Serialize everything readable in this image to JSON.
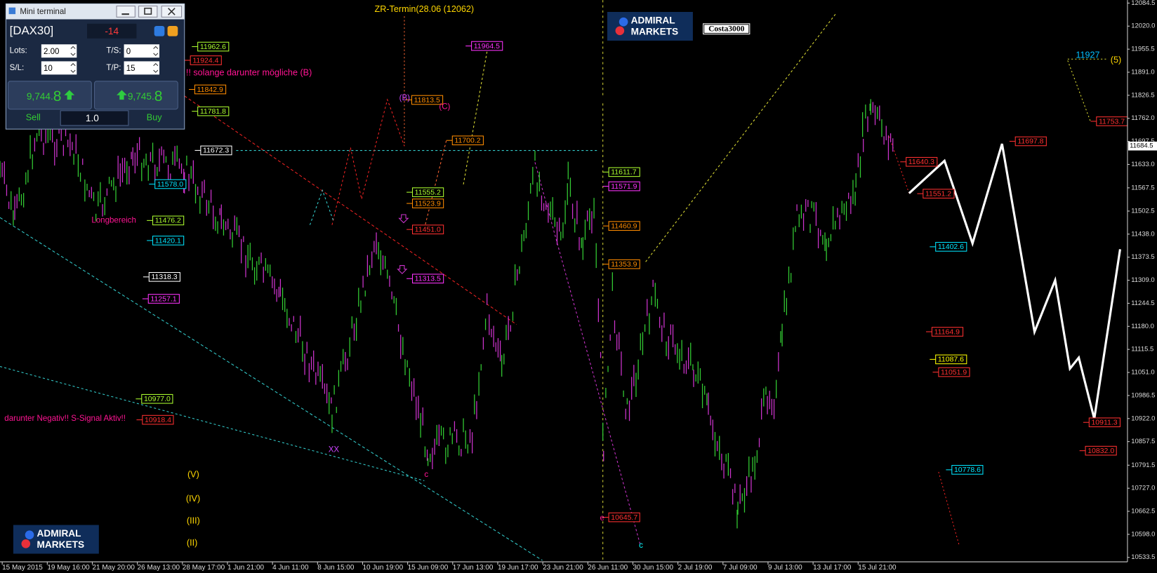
{
  "terminal": {
    "title": "Mini terminal",
    "symbol": "[DAX30]",
    "spread": "-14",
    "lots_label": "Lots:",
    "lots": "2.00",
    "ts_label": "T/S:",
    "ts": "0",
    "sl_label": "S/L:",
    "sl": "10",
    "tp_label": "T/P:",
    "tp": "15",
    "sell_price_main": "9,744.",
    "sell_price_last": "8",
    "buy_price_main": "9,745.",
    "buy_price_last": "8",
    "sell": "Sell",
    "volume": "1.0",
    "buy": "Buy"
  },
  "logo_top": [
    "ADMIRAL",
    "MARKETS"
  ],
  "logo_bottom": [
    "ADMIRAL",
    "MARKETS"
  ],
  "user_badge": "Costa3000",
  "price_axis": {
    "range": [
      10533.5,
      12084.5
    ],
    "ticks": [
      {
        "value": 12084.5,
        "label": "12084.5"
      },
      {
        "value": 12020.0,
        "label": "12020.0"
      },
      {
        "value": 11955.5,
        "label": "11955.5"
      },
      {
        "value": 11891.0,
        "label": "11891.0"
      },
      {
        "value": 11826.5,
        "label": "11826.5"
      },
      {
        "value": 11762.0,
        "label": "11762.0"
      },
      {
        "value": 11697.5,
        "label": "11697.5"
      },
      {
        "value": 11633.0,
        "label": "11633.0"
      },
      {
        "value": 11567.5,
        "label": "11567.5"
      },
      {
        "value": 11502.5,
        "label": "11502.5"
      },
      {
        "value": 11438.0,
        "label": "11438.0"
      },
      {
        "value": 11373.5,
        "label": "11373.5"
      },
      {
        "value": 11309.0,
        "label": "11309.0"
      },
      {
        "value": 11244.5,
        "label": "11244.5"
      },
      {
        "value": 11180.0,
        "label": "11180.0"
      },
      {
        "value": 11115.5,
        "label": "11115.5"
      },
      {
        "value": 11051.0,
        "label": "11051.0"
      },
      {
        "value": 10986.5,
        "label": "10986.5"
      },
      {
        "value": 10922.0,
        "label": "10922.0"
      },
      {
        "value": 10857.5,
        "label": "10857.5"
      },
      {
        "value": 10791.5,
        "label": "10791.5"
      },
      {
        "value": 10727.0,
        "label": "10727.0"
      },
      {
        "value": 10662.5,
        "label": "10662.5"
      },
      {
        "value": 10598.0,
        "label": "10598.0"
      },
      {
        "value": 10533.5,
        "label": "10533.5"
      }
    ],
    "current_price": {
      "value": 11684.5,
      "label": "11684.5"
    }
  },
  "time_axis": [
    "15 May 2015",
    "19 May 16:00",
    "21 May 20:00",
    "26 May 13:00",
    "28 May 17:00",
    "1 Jun 21:00",
    "4 Jun 11:00",
    "8 Jun 15:00",
    "10 Jun 19:00",
    "15 Jun 09:00",
    "17 Jun 13:00",
    "19 Jun 17:00",
    "23 Jun 21:00",
    "26 Jun 11:00",
    "30 Jun 15:00",
    "2 Jul 19:00",
    "7 Jul 09:00",
    "9 Jul 13:00",
    "13 Jul 17:00",
    "15 Jul 21:00"
  ],
  "price_labels": [
    {
      "value": 11962.6,
      "label": "11962.6",
      "color": "#adff2f"
    },
    {
      "value": 11924.4,
      "label": "11924.4",
      "color": "#ff3030"
    },
    {
      "value": 11842.9,
      "label": "11842.9",
      "color": "#ff8c00"
    },
    {
      "value": 11781.8,
      "label": "11781.8",
      "color": "#adff2f"
    },
    {
      "value": 11672.3,
      "label": "11672.3",
      "color": "#ffffff"
    },
    {
      "value": 11578.0,
      "label": "11578.0",
      "color": "#00e5ff"
    },
    {
      "value": 11476.2,
      "label": "11476.2",
      "color": "#adff2f"
    },
    {
      "value": 11420.1,
      "label": "11420.1",
      "color": "#00e5ff"
    },
    {
      "value": 11318.3,
      "label": "11318.3",
      "color": "#ffffff"
    },
    {
      "value": 11257.1,
      "label": "11257.1",
      "color": "#ff33ff"
    },
    {
      "value": 10977.0,
      "label": "10977.0",
      "color": "#adff2f"
    },
    {
      "value": 10918.4,
      "label": "10918.4",
      "color": "#ff3030"
    },
    {
      "value": 11964.5,
      "label": "11964.5",
      "color": "#ff33ff"
    },
    {
      "value": 11813.5,
      "label": "11813.5",
      "color": "#ff8c00"
    },
    {
      "value": 11700.2,
      "label": "11700.2",
      "color": "#ff8c00"
    },
    {
      "value": 11555.2,
      "label": "11555.2",
      "color": "#adff2f"
    },
    {
      "value": 11523.9,
      "label": "11523.9",
      "color": "#ff8c00"
    },
    {
      "value": 11451.0,
      "label": "11451.0",
      "color": "#ff3030"
    },
    {
      "value": 11313.5,
      "label": "11313.5",
      "color": "#ff33ff"
    },
    {
      "value": 11611.7,
      "label": "11611.7",
      "color": "#adff2f"
    },
    {
      "value": 11571.9,
      "label": "11571.9",
      "color": "#ff33ff"
    },
    {
      "value": 11460.9,
      "label": "11460.9",
      "color": "#ff8c00"
    },
    {
      "value": 11353.9,
      "label": "11353.9",
      "color": "#ff8c00"
    },
    {
      "value": 10645.7,
      "label": "10645.7",
      "color": "#ff3030"
    },
    {
      "value": 11640.3,
      "label": "11640.3",
      "color": "#ff3030"
    },
    {
      "value": 11551.2,
      "label": "11551.2",
      "color": "#ff3030"
    },
    {
      "value": 11402.6,
      "label": "11402.6",
      "color": "#00e5ff"
    },
    {
      "value": 11164.9,
      "label": "11164.9",
      "color": "#ff3030"
    },
    {
      "value": 11087.6,
      "label": "11087.6",
      "color": "#ffff00"
    },
    {
      "value": 11051.9,
      "label": "11051.9",
      "color": "#ff3030"
    },
    {
      "value": 10778.6,
      "label": "10778.6",
      "color": "#00e5ff"
    },
    {
      "value": 11697.8,
      "label": "11697.8",
      "color": "#ff3030"
    },
    {
      "value": 11753.7,
      "label": "11753.7",
      "color": "#ff3030"
    },
    {
      "value": 10911.3,
      "label": "10911.3",
      "color": "#ff3030"
    },
    {
      "value": 10832.0,
      "label": "10832.0",
      "color": "#ff3030"
    }
  ],
  "annotations": [
    "ZR-Termin(28.06  (12062)",
    "!! solange darunter mögliche (B)",
    "Longbereich",
    "darunter Negativ!! S-Signal Aktiv!!",
    "(B)",
    "(C)",
    "XX",
    "c",
    "c",
    "e",
    "(V)",
    "(IV)",
    "(III)",
    "(II)",
    "11927",
    "(5)"
  ]
}
